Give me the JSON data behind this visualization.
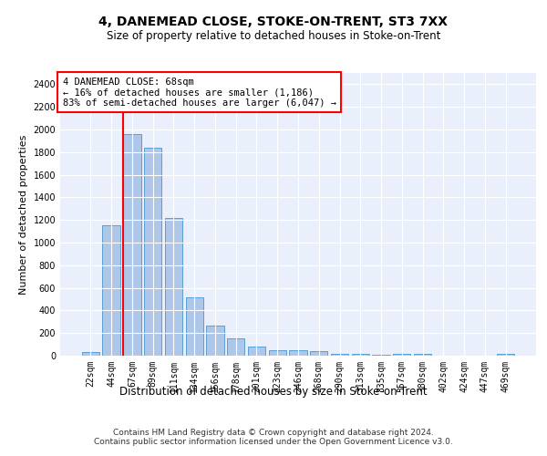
{
  "title": "4, DANEMEAD CLOSE, STOKE-ON-TRENT, ST3 7XX",
  "subtitle": "Size of property relative to detached houses in Stoke-on-Trent",
  "xlabel": "Distribution of detached houses by size in Stoke-on-Trent",
  "ylabel": "Number of detached properties",
  "categories": [
    "22sqm",
    "44sqm",
    "67sqm",
    "89sqm",
    "111sqm",
    "134sqm",
    "156sqm",
    "178sqm",
    "201sqm",
    "223sqm",
    "246sqm",
    "268sqm",
    "290sqm",
    "313sqm",
    "335sqm",
    "357sqm",
    "380sqm",
    "402sqm",
    "424sqm",
    "447sqm",
    "469sqm"
  ],
  "values": [
    30,
    1150,
    1960,
    1840,
    1215,
    515,
    265,
    155,
    80,
    50,
    45,
    40,
    20,
    20,
    10,
    20,
    20,
    0,
    0,
    0,
    20
  ],
  "bar_color": "#aec6e8",
  "bar_edge_color": "#5a9fd4",
  "marker_bin_index": 2,
  "marker_label": "4 DANEMEAD CLOSE: 68sqm",
  "annotation_line1": "← 16% of detached houses are smaller (1,186)",
  "annotation_line2": "83% of semi-detached houses are larger (6,047) →",
  "ylim": [
    0,
    2500
  ],
  "yticks": [
    0,
    200,
    400,
    600,
    800,
    1000,
    1200,
    1400,
    1600,
    1800,
    2000,
    2200,
    2400
  ],
  "background_color": "#eaf0fb",
  "grid_color": "#ffffff",
  "footer_line1": "Contains HM Land Registry data © Crown copyright and database right 2024.",
  "footer_line2": "Contains public sector information licensed under the Open Government Licence v3.0."
}
